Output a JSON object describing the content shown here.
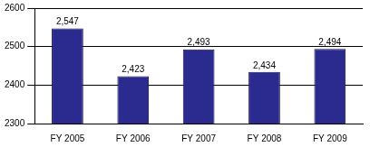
{
  "chart_data": {
    "type": "bar",
    "categories": [
      "FY 2005",
      "FY 2006",
      "FY 2007",
      "FY 2008",
      "FY 2009"
    ],
    "values": [
      2547,
      2423,
      2493,
      2434,
      2494
    ],
    "value_labels": [
      "2,547",
      "2,423",
      "2,493",
      "2,434",
      "2,494"
    ],
    "color": "#2b2b8f",
    "ylim": [
      2300,
      2600
    ],
    "yticks": [
      2300,
      2400,
      2500,
      2600
    ],
    "grid": true,
    "data_labels": true
  }
}
